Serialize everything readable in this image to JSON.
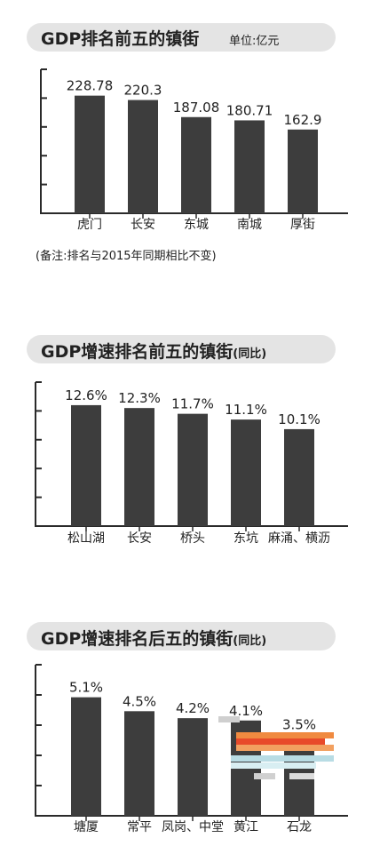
{
  "charts": [
    {
      "title": "GDP排名前五的镇街",
      "title_suffix": "",
      "unit": "单位:亿元",
      "note": "(备注:排名与2015年同期相比不变)"
    },
    {
      "title": "GDP增速排名前五的镇街",
      "title_suffix": "(同比)",
      "unit": "",
      "note": ""
    },
    {
      "title": "GDP增速排名后五的镇街",
      "title_suffix": "(同比)",
      "unit": "",
      "note": ""
    }
  ],
  "colors": {
    "bar": "#3d3d3d",
    "axis": "#2a2a2a",
    "title_bg": "#e4e4e4"
  },
  "chart_data": [
    {
      "type": "bar",
      "title": "GDP排名前五的镇街",
      "categories": [
        "虎门",
        "长安",
        "东城",
        "南城",
        "厚街"
      ],
      "values": [
        228.78,
        220.3,
        187.08,
        180.71,
        162.9
      ],
      "labels": [
        "228.78",
        "220.3",
        "187.08",
        "180.71",
        "162.9"
      ],
      "ylim": [
        0,
        280
      ],
      "grid": false
    },
    {
      "type": "bar",
      "title": "GDP增速排名前五的镇街",
      "categories": [
        "松山湖",
        "长安",
        "桥头",
        "东坑",
        "麻涌、横沥"
      ],
      "values": [
        12.6,
        12.3,
        11.7,
        11.1,
        10.1
      ],
      "labels": [
        "12.6%",
        "12.3%",
        "11.7%",
        "11.1%",
        "10.1%"
      ],
      "ylim": [
        0,
        15
      ],
      "grid": false
    },
    {
      "type": "bar",
      "title": "GDP增速排名后五的镇街",
      "categories": [
        "塘厦",
        "常平",
        "凤岗、中堂",
        "黄江",
        "石龙"
      ],
      "values": [
        5.1,
        4.5,
        4.2,
        4.1,
        3.5
      ],
      "labels": [
        "5.1%",
        "4.5%",
        "4.2%",
        "4.1%",
        "3.5%"
      ],
      "ylim": [
        0,
        6.5
      ],
      "grid": false
    }
  ]
}
